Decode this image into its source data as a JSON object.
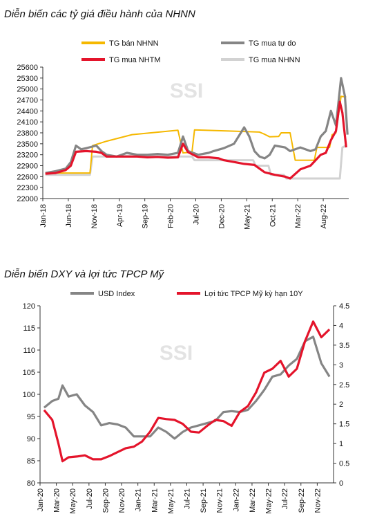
{
  "chart_data": [
    {
      "type": "line",
      "title": "Diễn biến các tỷ giá điều hành của NHNN",
      "watermark": "SSI",
      "x_ticks": [
        "Jan-18",
        "Jun-18",
        "Nov-18",
        "Apr-19",
        "Sep-19",
        "Feb-20",
        "Jul-20",
        "Dec-20",
        "May-21",
        "Oct-21",
        "Mar-22",
        "Aug-22"
      ],
      "x_range": [
        "2018-01",
        "2022-12"
      ],
      "y_ticks": [
        22000,
        22300,
        22600,
        22900,
        23200,
        23500,
        23800,
        24100,
        24400,
        24700,
        25000,
        25300,
        25600
      ],
      "ylim": [
        22000,
        25600
      ],
      "legend": [
        "TG bán NHNN",
        "TG mua tự do",
        "TG mua NHTM",
        "TG mua NHNN"
      ],
      "series": [
        {
          "name": "TG bán NHNN",
          "color": "#f5b800",
          "width": 2,
          "points": [
            [
              "2018-01",
              22700
            ],
            [
              "2018-10",
              22700
            ],
            [
              "2018-10",
              23450
            ],
            [
              "2019-01",
              23570
            ],
            [
              "2019-06",
              23750
            ],
            [
              "2019-12",
              23830
            ],
            [
              "2020-03",
              23870
            ],
            [
              "2020-04",
              23250
            ],
            [
              "2020-06",
              23270
            ],
            [
              "2020-06",
              23880
            ],
            [
              "2021-01",
              23850
            ],
            [
              "2021-07",
              23820
            ],
            [
              "2021-08",
              23760
            ],
            [
              "2021-09",
              23690
            ],
            [
              "2021-11",
              23700
            ],
            [
              "2021-11",
              23800
            ],
            [
              "2022-01",
              23800
            ],
            [
              "2022-02",
              23050
            ],
            [
              "2022-06",
              23050
            ],
            [
              "2022-06",
              23400
            ],
            [
              "2022-09",
              23400
            ],
            [
              "2022-09",
              23750
            ],
            [
              "2022-10",
              23800
            ],
            [
              "2022-11",
              24800
            ],
            [
              "2022-12",
              24780
            ]
          ]
        },
        {
          "name": "TG mua tự do",
          "color": "#858585",
          "width": 3.2,
          "points": [
            [
              "2018-01",
              22700
            ],
            [
              "2018-03",
              22750
            ],
            [
              "2018-05",
              22820
            ],
            [
              "2018-06",
              23000
            ],
            [
              "2018-07",
              23450
            ],
            [
              "2018-08",
              23350
            ],
            [
              "2018-09",
              23380
            ],
            [
              "2018-11",
              23450
            ],
            [
              "2018-12",
              23300
            ],
            [
              "2019-01",
              23200
            ],
            [
              "2019-03",
              23150
            ],
            [
              "2019-05",
              23250
            ],
            [
              "2019-07",
              23200
            ],
            [
              "2019-09",
              23200
            ],
            [
              "2019-11",
              23220
            ],
            [
              "2020-01",
              23200
            ],
            [
              "2020-03",
              23250
            ],
            [
              "2020-04",
              23700
            ],
            [
              "2020-05",
              23300
            ],
            [
              "2020-07",
              23200
            ],
            [
              "2020-09",
              23250
            ],
            [
              "2020-10",
              23300
            ],
            [
              "2020-12",
              23380
            ],
            [
              "2021-02",
              23500
            ],
            [
              "2021-04",
              23950
            ],
            [
              "2021-05",
              23700
            ],
            [
              "2021-06",
              23300
            ],
            [
              "2021-07",
              23150
            ],
            [
              "2021-08",
              23100
            ],
            [
              "2021-09",
              23200
            ],
            [
              "2021-10",
              23450
            ],
            [
              "2021-12",
              23400
            ],
            [
              "2022-01",
              23300
            ],
            [
              "2022-03",
              23400
            ],
            [
              "2022-05",
              23300
            ],
            [
              "2022-06",
              23350
            ],
            [
              "2022-07",
              23700
            ],
            [
              "2022-08",
              23850
            ],
            [
              "2022-09",
              24400
            ],
            [
              "2022-10",
              24000
            ],
            [
              "2022-11",
              25300
            ],
            [
              "2022-12",
              24800
            ],
            [
              "2022-12",
              23750
            ]
          ]
        },
        {
          "name": "TG mua NHTM",
          "color": "#e4142b",
          "width": 3.2,
          "points": [
            [
              "2018-01",
              22680
            ],
            [
              "2018-03",
              22700
            ],
            [
              "2018-05",
              22780
            ],
            [
              "2018-06",
              22900
            ],
            [
              "2018-07",
              23280
            ],
            [
              "2018-09",
              23300
            ],
            [
              "2018-11",
              23280
            ],
            [
              "2018-12",
              23250
            ],
            [
              "2019-01",
              23150
            ],
            [
              "2019-04",
              23150
            ],
            [
              "2019-07",
              23150
            ],
            [
              "2019-09",
              23130
            ],
            [
              "2019-11",
              23140
            ],
            [
              "2020-01",
              23120
            ],
            [
              "2020-03",
              23130
            ],
            [
              "2020-04",
              23500
            ],
            [
              "2020-05",
              23270
            ],
            [
              "2020-07",
              23130
            ],
            [
              "2020-09",
              23130
            ],
            [
              "2020-11",
              23100
            ],
            [
              "2020-12",
              23050
            ],
            [
              "2021-02",
              23000
            ],
            [
              "2021-04",
              22950
            ],
            [
              "2021-06",
              22920
            ],
            [
              "2021-08",
              22720
            ],
            [
              "2021-10",
              22650
            ],
            [
              "2021-12",
              22600
            ],
            [
              "2022-01",
              22550
            ],
            [
              "2022-03",
              22800
            ],
            [
              "2022-05",
              22900
            ],
            [
              "2022-06",
              23050
            ],
            [
              "2022-07",
              23200
            ],
            [
              "2022-08",
              23250
            ],
            [
              "2022-09",
              23600
            ],
            [
              "2022-10",
              23850
            ],
            [
              "2022-11",
              24650
            ],
            [
              "2022-11",
              24350
            ],
            [
              "2022-12",
              23400
            ]
          ]
        },
        {
          "name": "TG mua NHNN",
          "color": "#d2d2d2",
          "width": 3,
          "points": [
            [
              "2018-01",
              22650
            ],
            [
              "2018-10",
              22650
            ],
            [
              "2018-10",
              23150
            ],
            [
              "2019-03",
              23150
            ],
            [
              "2019-06",
              23180
            ],
            [
              "2019-12",
              23150
            ],
            [
              "2020-06",
              23150
            ],
            [
              "2020-06",
              23050
            ],
            [
              "2021-06",
              23050
            ],
            [
              "2021-06",
              22900
            ],
            [
              "2021-09",
              22900
            ],
            [
              "2021-09",
              22650
            ],
            [
              "2021-12",
              22650
            ],
            [
              "2021-12",
              22550
            ],
            [
              "2022-11",
              22550
            ],
            [
              "2022-11",
              23400
            ],
            [
              "2022-12",
              23450
            ]
          ]
        }
      ]
    },
    {
      "type": "line",
      "title": "Diễn biến DXY và lợi tức TPCP Mỹ",
      "watermark": "SSI",
      "x_ticks": [
        "Jan-20",
        "Mar-20",
        "May-20",
        "Jul-20",
        "Sep-20",
        "Nov-20",
        "Jan-21",
        "Mar-21",
        "May-21",
        "Jul-21",
        "Sep-21",
        "Nov-21",
        "Jan-22",
        "Mar-22",
        "May-22",
        "Jul-22",
        "Sep-22",
        "Nov-22"
      ],
      "x_range": [
        "2020-01",
        "2022-12"
      ],
      "y_left_ticks": [
        80,
        85,
        90,
        95,
        100,
        105,
        110,
        115,
        120
      ],
      "ylim_left": [
        80,
        120
      ],
      "y_right_ticks": [
        "0",
        "0.5",
        "1",
        "1.5",
        "2",
        "2.5",
        "3",
        "3.5",
        "4",
        "4.5"
      ],
      "ylim_right": [
        0,
        4.5
      ],
      "legend": [
        "USD Index",
        "Lợi tức TPCP Mỹ kỳ hạn 10Y"
      ],
      "series": [
        {
          "name": "USD Index",
          "axis": "left",
          "color": "#858585",
          "width": 3.2,
          "points": [
            [
              "2020-01",
              97
            ],
            [
              "2020-02",
              98.5
            ],
            [
              "2020-03",
              99
            ],
            [
              "2020-03",
              102
            ],
            [
              "2020-04",
              99.5
            ],
            [
              "2020-05",
              100
            ],
            [
              "2020-06",
              97.5
            ],
            [
              "2020-07",
              96
            ],
            [
              "2020-08",
              93
            ],
            [
              "2020-09",
              93.5
            ],
            [
              "2020-10",
              93.2
            ],
            [
              "2020-11",
              92.5
            ],
            [
              "2020-12",
              90.5
            ],
            [
              "2021-01",
              90.5
            ],
            [
              "2021-02",
              90.5
            ],
            [
              "2021-03",
              92.5
            ],
            [
              "2021-04",
              91.5
            ],
            [
              "2021-05",
              90
            ],
            [
              "2021-06",
              91.5
            ],
            [
              "2021-07",
              92.5
            ],
            [
              "2021-08",
              93
            ],
            [
              "2021-09",
              93.5
            ],
            [
              "2021-10",
              94
            ],
            [
              "2021-11",
              96
            ],
            [
              "2021-12",
              96.2
            ],
            [
              "2022-01",
              96
            ],
            [
              "2022-02",
              96.5
            ],
            [
              "2022-03",
              98.5
            ],
            [
              "2022-04",
              101
            ],
            [
              "2022-05",
              104
            ],
            [
              "2022-06",
              104.5
            ],
            [
              "2022-07",
              106.5
            ],
            [
              "2022-08",
              108
            ],
            [
              "2022-09",
              112
            ],
            [
              "2022-10",
              113
            ],
            [
              "2022-11",
              107
            ],
            [
              "2022-12",
              104
            ]
          ]
        },
        {
          "name": "Lợi tức TPCP Mỹ kỳ hạn 10Y",
          "axis": "right",
          "color": "#e4142b",
          "width": 3.2,
          "points": [
            [
              "2020-01",
              1.85
            ],
            [
              "2020-02",
              1.6
            ],
            [
              "2020-03",
              1.0
            ],
            [
              "2020-03",
              0.55
            ],
            [
              "2020-04",
              0.65
            ],
            [
              "2020-05",
              0.67
            ],
            [
              "2020-06",
              0.7
            ],
            [
              "2020-07",
              0.6
            ],
            [
              "2020-08",
              0.6
            ],
            [
              "2020-09",
              0.68
            ],
            [
              "2020-10",
              0.78
            ],
            [
              "2020-11",
              0.88
            ],
            [
              "2020-12",
              0.92
            ],
            [
              "2021-01",
              1.05
            ],
            [
              "2021-02",
              1.3
            ],
            [
              "2021-03",
              1.65
            ],
            [
              "2021-04",
              1.62
            ],
            [
              "2021-05",
              1.6
            ],
            [
              "2021-06",
              1.5
            ],
            [
              "2021-07",
              1.3
            ],
            [
              "2021-08",
              1.28
            ],
            [
              "2021-09",
              1.45
            ],
            [
              "2021-10",
              1.6
            ],
            [
              "2021-11",
              1.57
            ],
            [
              "2021-12",
              1.45
            ],
            [
              "2022-01",
              1.8
            ],
            [
              "2022-02",
              1.95
            ],
            [
              "2022-03",
              2.3
            ],
            [
              "2022-04",
              2.8
            ],
            [
              "2022-05",
              2.9
            ],
            [
              "2022-06",
              3.1
            ],
            [
              "2022-07",
              2.7
            ],
            [
              "2022-08",
              2.9
            ],
            [
              "2022-09",
              3.6
            ],
            [
              "2022-10",
              4.1
            ],
            [
              "2022-11",
              3.7
            ],
            [
              "2022-12",
              3.9
            ]
          ]
        }
      ]
    }
  ]
}
